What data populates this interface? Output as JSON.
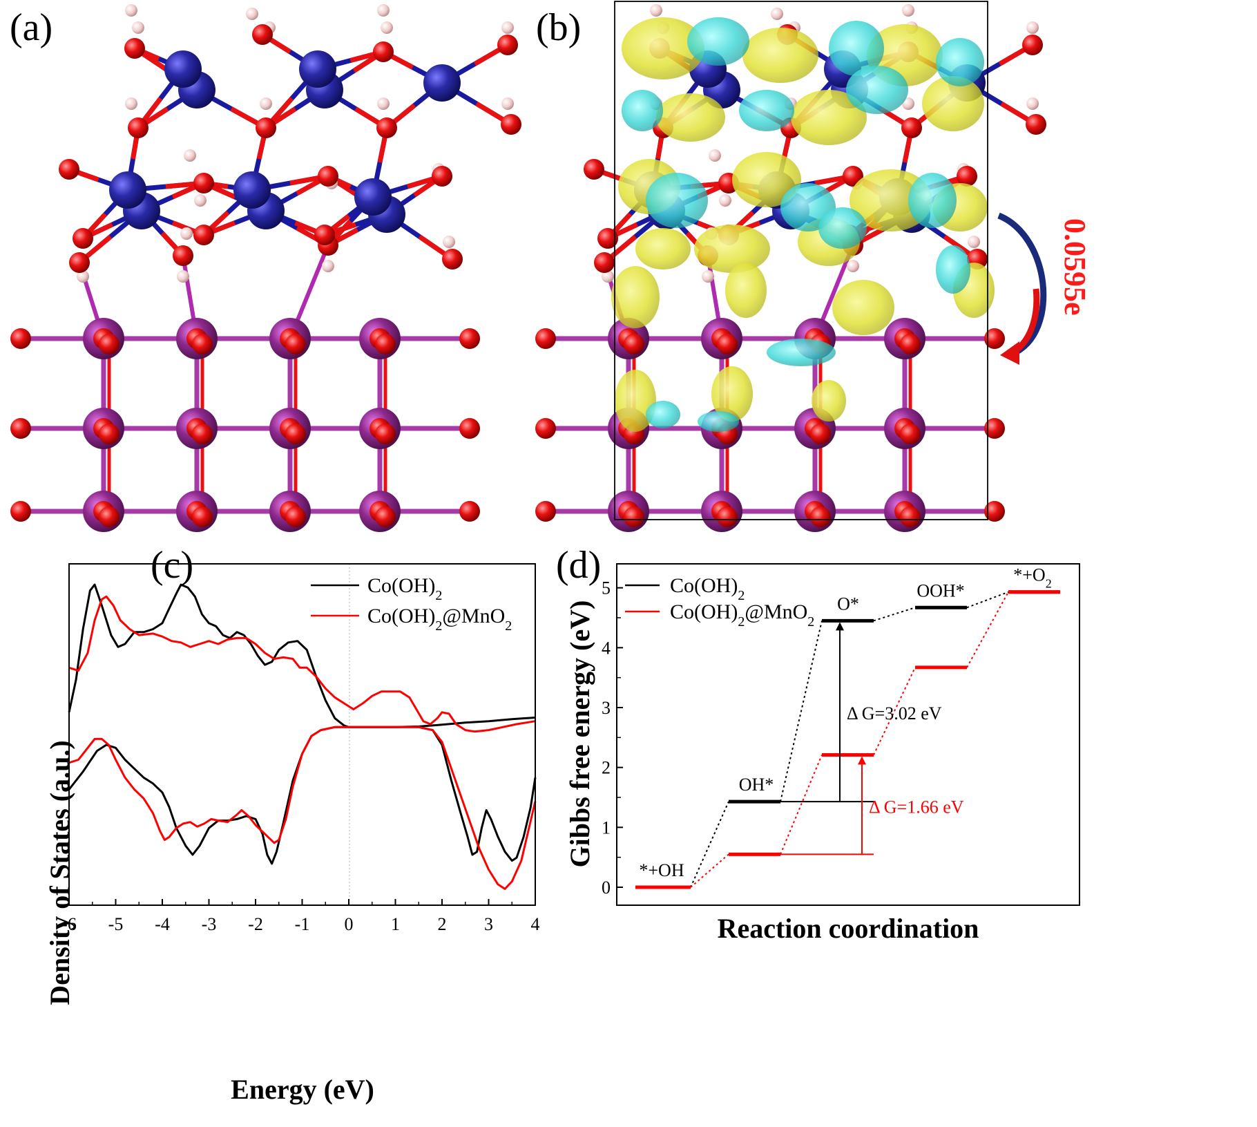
{
  "panels": {
    "a": {
      "letter": "(a)"
    },
    "b": {
      "letter": "(b)",
      "charge_transfer": "0.0595e"
    },
    "c": {
      "letter": "(c)"
    },
    "d": {
      "letter": "(d)"
    }
  },
  "colors": {
    "co_series": "#000000",
    "mno2_series": "#ff0000",
    "co_atom": "#2a2aa8",
    "mn_atom": "#8e2a8e",
    "o_atom": "#e81010",
    "h_atom": "#f4d7d7",
    "iso_yellow": "#e8e83a",
    "iso_cyan": "#3ad6d6"
  },
  "chart_data": [
    {
      "type": "line",
      "panel": "c",
      "xlabel": "Energy (eV)",
      "ylabel": "Density of States (a.u.)",
      "xlim": [
        -6,
        4
      ],
      "xticks": [
        "-6",
        "-5",
        "-4",
        "-3",
        "-2",
        "-1",
        "0",
        "1",
        "2",
        "3",
        "4"
      ],
      "legend": [
        "Co(OH)2",
        "Co(OH)2@MnO2"
      ],
      "series": [
        {
          "name": "Co(OH)2",
          "component": "spin-up",
          "points": [
            [
              -6,
              4.2
            ],
            [
              -5.85,
              5.3
            ],
            [
              -5.7,
              7.0
            ],
            [
              -5.55,
              8.3
            ],
            [
              -5.45,
              8.5
            ],
            [
              -5.3,
              7.8
            ],
            [
              -5.1,
              6.8
            ],
            [
              -4.95,
              6.4
            ],
            [
              -4.8,
              6.5
            ],
            [
              -4.6,
              6.9
            ],
            [
              -4.4,
              6.9
            ],
            [
              -4.2,
              7.0
            ],
            [
              -4.0,
              7.2
            ],
            [
              -3.85,
              7.7
            ],
            [
              -3.7,
              8.2
            ],
            [
              -3.6,
              8.5
            ],
            [
              -3.45,
              8.4
            ],
            [
              -3.3,
              8.1
            ],
            [
              -3.15,
              7.5
            ],
            [
              -3.0,
              7.2
            ],
            [
              -2.85,
              7.1
            ],
            [
              -2.7,
              6.8
            ],
            [
              -2.55,
              6.7
            ],
            [
              -2.4,
              6.9
            ],
            [
              -2.25,
              6.8
            ],
            [
              -2.1,
              6.5
            ],
            [
              -1.95,
              6.1
            ],
            [
              -1.8,
              5.8
            ],
            [
              -1.65,
              5.9
            ],
            [
              -1.5,
              6.3
            ],
            [
              -1.3,
              6.55
            ],
            [
              -1.1,
              6.6
            ],
            [
              -0.9,
              6.3
            ],
            [
              -0.7,
              5.4
            ],
            [
              -0.5,
              4.6
            ],
            [
              -0.3,
              4.0
            ],
            [
              -0.1,
              3.75
            ],
            [
              0,
              3.7
            ],
            [
              0.5,
              3.7
            ],
            [
              1.0,
              3.7
            ],
            [
              1.5,
              3.72
            ],
            [
              2.0,
              3.78
            ],
            [
              2.5,
              3.85
            ],
            [
              3.0,
              3.9
            ],
            [
              3.5,
              3.97
            ],
            [
              4,
              4.02
            ]
          ]
        },
        {
          "name": "Co(OH)2",
          "component": "spin-down",
          "points": [
            [
              -6,
              1.6
            ],
            [
              -5.7,
              2.2
            ],
            [
              -5.4,
              2.9
            ],
            [
              -5.2,
              3.1
            ],
            [
              -5.0,
              3.0
            ],
            [
              -4.8,
              2.6
            ],
            [
              -4.6,
              2.3
            ],
            [
              -4.4,
              2.0
            ],
            [
              -4.2,
              1.8
            ],
            [
              -4.0,
              1.5
            ],
            [
              -3.85,
              1.0
            ],
            [
              -3.7,
              0.3
            ],
            [
              -3.5,
              -0.3
            ],
            [
              -3.35,
              -0.6
            ],
            [
              -3.2,
              -0.3
            ],
            [
              -3.0,
              0.3
            ],
            [
              -2.8,
              0.55
            ],
            [
              -2.6,
              0.55
            ],
            [
              -2.4,
              0.6
            ],
            [
              -2.2,
              0.7
            ],
            [
              -2.0,
              0.6
            ],
            [
              -1.85,
              0.1
            ],
            [
              -1.75,
              -0.6
            ],
            [
              -1.65,
              -0.9
            ],
            [
              -1.55,
              -0.5
            ],
            [
              -1.4,
              0.5
            ],
            [
              -1.2,
              1.9
            ],
            [
              -1.0,
              2.8
            ],
            [
              -0.8,
              3.4
            ],
            [
              -0.6,
              3.6
            ],
            [
              -0.3,
              3.7
            ],
            [
              0,
              3.7
            ],
            [
              0.5,
              3.7
            ],
            [
              1.0,
              3.7
            ],
            [
              1.5,
              3.7
            ],
            [
              1.8,
              3.6
            ],
            [
              2.0,
              3.1
            ],
            [
              2.2,
              1.9
            ],
            [
              2.4,
              0.8
            ],
            [
              2.55,
              0.0
            ],
            [
              2.65,
              -0.6
            ],
            [
              2.75,
              -0.5
            ],
            [
              2.85,
              0.3
            ],
            [
              2.95,
              0.9
            ],
            [
              3.05,
              0.6
            ],
            [
              3.2,
              0.0
            ],
            [
              3.35,
              -0.5
            ],
            [
              3.5,
              -0.8
            ],
            [
              3.6,
              -0.7
            ],
            [
              3.75,
              0.0
            ],
            [
              3.9,
              1.0
            ],
            [
              4,
              2.0
            ]
          ]
        },
        {
          "name": "Co(OH)2@MnO2",
          "component": "spin-up",
          "points": [
            [
              -6,
              5.7
            ],
            [
              -5.8,
              5.6
            ],
            [
              -5.6,
              6.2
            ],
            [
              -5.45,
              7.3
            ],
            [
              -5.3,
              8.0
            ],
            [
              -5.2,
              8.1
            ],
            [
              -5.05,
              7.8
            ],
            [
              -4.9,
              7.3
            ],
            [
              -4.7,
              7.0
            ],
            [
              -4.5,
              6.8
            ],
            [
              -4.2,
              6.85
            ],
            [
              -4.0,
              6.75
            ],
            [
              -3.8,
              6.6
            ],
            [
              -3.6,
              6.55
            ],
            [
              -3.4,
              6.4
            ],
            [
              -3.2,
              6.5
            ],
            [
              -3.0,
              6.6
            ],
            [
              -2.8,
              6.5
            ],
            [
              -2.6,
              6.65
            ],
            [
              -2.4,
              6.7
            ],
            [
              -2.2,
              6.7
            ],
            [
              -2.0,
              6.5
            ],
            [
              -1.8,
              6.2
            ],
            [
              -1.6,
              6.0
            ],
            [
              -1.4,
              6.05
            ],
            [
              -1.2,
              6.0
            ],
            [
              -1.05,
              5.7
            ],
            [
              -0.9,
              5.7
            ],
            [
              -0.7,
              5.4
            ],
            [
              -0.5,
              5.0
            ],
            [
              -0.3,
              4.7
            ],
            [
              -0.1,
              4.5
            ],
            [
              0.1,
              4.3
            ],
            [
              0.3,
              4.5
            ],
            [
              0.5,
              4.75
            ],
            [
              0.7,
              4.9
            ],
            [
              0.9,
              4.9
            ],
            [
              1.1,
              4.9
            ],
            [
              1.3,
              4.7
            ],
            [
              1.45,
              4.3
            ],
            [
              1.6,
              3.9
            ],
            [
              1.75,
              3.8
            ],
            [
              1.9,
              4.0
            ],
            [
              2.0,
              4.2
            ],
            [
              2.15,
              4.15
            ],
            [
              2.3,
              3.8
            ],
            [
              2.5,
              3.6
            ],
            [
              2.7,
              3.55
            ],
            [
              3.0,
              3.6
            ],
            [
              3.3,
              3.7
            ],
            [
              3.6,
              3.8
            ],
            [
              4,
              3.9
            ]
          ]
        },
        {
          "name": "Co(OH)2@MnO2",
          "component": "spin-down",
          "points": [
            [
              -6,
              2.5
            ],
            [
              -5.8,
              2.6
            ],
            [
              -5.6,
              3.0
            ],
            [
              -5.45,
              3.3
            ],
            [
              -5.3,
              3.3
            ],
            [
              -5.15,
              3.1
            ],
            [
              -5.0,
              2.6
            ],
            [
              -4.8,
              2.0
            ],
            [
              -4.6,
              1.6
            ],
            [
              -4.4,
              1.3
            ],
            [
              -4.2,
              0.8
            ],
            [
              -4.05,
              0.2
            ],
            [
              -3.95,
              -0.1
            ],
            [
              -3.85,
              0.0
            ],
            [
              -3.7,
              0.3
            ],
            [
              -3.55,
              0.45
            ],
            [
              -3.4,
              0.5
            ],
            [
              -3.25,
              0.35
            ],
            [
              -3.1,
              0.45
            ],
            [
              -2.95,
              0.6
            ],
            [
              -2.8,
              0.55
            ],
            [
              -2.6,
              0.5
            ],
            [
              -2.4,
              0.75
            ],
            [
              -2.3,
              0.9
            ],
            [
              -2.15,
              0.7
            ],
            [
              -2.0,
              0.4
            ],
            [
              -1.8,
              0.1
            ],
            [
              -1.6,
              -0.2
            ],
            [
              -1.5,
              -0.1
            ],
            [
              -1.35,
              0.6
            ],
            [
              -1.2,
              1.7
            ],
            [
              -1.0,
              2.8
            ],
            [
              -0.8,
              3.4
            ],
            [
              -0.6,
              3.6
            ],
            [
              -0.3,
              3.7
            ],
            [
              0,
              3.7
            ],
            [
              0.5,
              3.7
            ],
            [
              1.0,
              3.7
            ],
            [
              1.5,
              3.7
            ],
            [
              1.8,
              3.6
            ],
            [
              2.0,
              3.2
            ],
            [
              2.2,
              2.3
            ],
            [
              2.4,
              1.4
            ],
            [
              2.6,
              0.5
            ],
            [
              2.8,
              -0.4
            ],
            [
              3.0,
              -1.1
            ],
            [
              3.2,
              -1.6
            ],
            [
              3.35,
              -1.75
            ],
            [
              3.5,
              -1.5
            ],
            [
              3.7,
              -0.8
            ],
            [
              3.85,
              0.2
            ],
            [
              4,
              1.2
            ]
          ]
        }
      ]
    },
    {
      "type": "step",
      "panel": "d",
      "xlabel": "Reaction coordination",
      "ylabel": "Gibbs free energy (eV)",
      "ylim": [
        -0.3,
        5.4
      ],
      "yticks": [
        "0",
        "1",
        "2",
        "3",
        "4",
        "5"
      ],
      "legend": [
        "Co(OH)2",
        "Co(OH)2@MnO2"
      ],
      "steps": [
        "*+OH",
        "OH*",
        "O*",
        "OOH*",
        "*+O2"
      ],
      "series": [
        {
          "name": "Co(OH)2",
          "values": [
            0,
            1.43,
            4.45,
            4.67,
            4.93
          ]
        },
        {
          "name": "Co(OH)2@MnO2",
          "values": [
            0,
            0.55,
            2.21,
            3.67,
            4.93
          ]
        }
      ],
      "annotations": [
        {
          "text": "Δ G=3.02 eV",
          "series": "Co(OH)2",
          "from_step": 1,
          "to_step": 2
        },
        {
          "text": "Δ G=1.66 eV",
          "series": "Co(OH)2@MnO2",
          "from_step": 1,
          "to_step": 2
        }
      ]
    }
  ]
}
